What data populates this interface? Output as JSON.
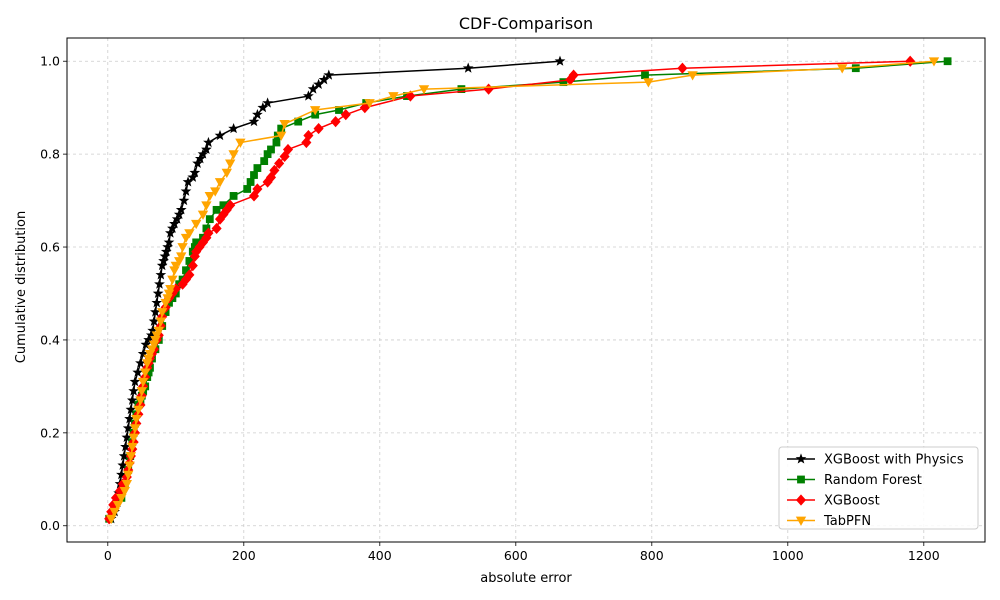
{
  "chart_data": {
    "type": "line",
    "title": "CDF-Comparison",
    "xlabel": "absolute error",
    "ylabel": "Cumulative distribution",
    "xlim": [
      -60,
      1290
    ],
    "ylim": [
      -0.035,
      1.05
    ],
    "xticks": [
      0,
      200,
      400,
      600,
      800,
      1000,
      1200
    ],
    "yticks": [
      0.0,
      0.2,
      0.4,
      0.6,
      0.8,
      1.0
    ],
    "xtick_labels": [
      "0",
      "200",
      "400",
      "600",
      "800",
      "1000",
      "1200"
    ],
    "ytick_labels": [
      "0.0",
      "0.2",
      "0.4",
      "0.6",
      "0.8",
      "1.0"
    ],
    "grid": true,
    "legend_position": "lower-right",
    "series": [
      {
        "name": "XGBoost with Physics",
        "color": "#000000",
        "marker": "star",
        "x": [
          5,
          10,
          14,
          16,
          18,
          20,
          22,
          24,
          26,
          28,
          30,
          32,
          34,
          36,
          38,
          40,
          44,
          48,
          52,
          56,
          60,
          64,
          66,
          68,
          70,
          72,
          74,
          76,
          78,
          80,
          82,
          84,
          86,
          88,
          90,
          92,
          95,
          98,
          102,
          105,
          108,
          112,
          115,
          118,
          125,
          128,
          132,
          136,
          140,
          145,
          148,
          165,
          185,
          215,
          220,
          228,
          235,
          295,
          302,
          310,
          318,
          325,
          530,
          665
        ],
        "y": [
          0.015,
          0.03,
          0.05,
          0.07,
          0.09,
          0.11,
          0.13,
          0.15,
          0.17,
          0.19,
          0.21,
          0.23,
          0.25,
          0.27,
          0.29,
          0.31,
          0.33,
          0.35,
          0.37,
          0.39,
          0.4,
          0.41,
          0.42,
          0.44,
          0.46,
          0.48,
          0.5,
          0.52,
          0.54,
          0.56,
          0.57,
          0.58,
          0.59,
          0.6,
          0.61,
          0.63,
          0.64,
          0.65,
          0.66,
          0.67,
          0.68,
          0.7,
          0.72,
          0.74,
          0.75,
          0.76,
          0.78,
          0.79,
          0.8,
          0.81,
          0.825,
          0.84,
          0.855,
          0.87,
          0.885,
          0.9,
          0.91,
          0.925,
          0.94,
          0.95,
          0.96,
          0.97,
          0.985,
          1.0
        ]
      },
      {
        "name": "Random Forest",
        "color": "#008000",
        "marker": "square",
        "x": [
          2,
          20,
          25,
          30,
          33,
          36,
          38,
          40,
          42,
          45,
          48,
          50,
          52,
          55,
          58,
          60,
          62,
          65,
          70,
          75,
          80,
          85,
          90,
          95,
          100,
          105,
          110,
          115,
          120,
          125,
          128,
          130,
          140,
          145,
          150,
          160,
          170,
          185,
          205,
          210,
          215,
          220,
          230,
          235,
          240,
          248,
          250,
          255,
          280,
          305,
          340,
          380,
          440,
          520,
          670,
          790,
          1100,
          1235
        ],
        "y": [
          0.015,
          0.06,
          0.09,
          0.12,
          0.15,
          0.18,
          0.2,
          0.22,
          0.24,
          0.26,
          0.27,
          0.28,
          0.29,
          0.3,
          0.32,
          0.33,
          0.34,
          0.36,
          0.38,
          0.4,
          0.43,
          0.46,
          0.48,
          0.49,
          0.5,
          0.52,
          0.53,
          0.55,
          0.57,
          0.59,
          0.6,
          0.61,
          0.62,
          0.64,
          0.66,
          0.68,
          0.69,
          0.71,
          0.725,
          0.74,
          0.755,
          0.77,
          0.785,
          0.8,
          0.81,
          0.825,
          0.84,
          0.855,
          0.87,
          0.885,
          0.895,
          0.91,
          0.925,
          0.94,
          0.955,
          0.97,
          0.985,
          1.0
        ]
      },
      {
        "name": "XGBoost",
        "color": "#ff0000",
        "marker": "diamond",
        "x": [
          2,
          5,
          8,
          12,
          18,
          22,
          28,
          30,
          32,
          34,
          36,
          38,
          40,
          42,
          45,
          48,
          50,
          52,
          55,
          58,
          60,
          62,
          65,
          68,
          72,
          75,
          78,
          80,
          85,
          90,
          95,
          100,
          110,
          115,
          120,
          125,
          128,
          130,
          135,
          140,
          145,
          148,
          160,
          165,
          170,
          175,
          180,
          215,
          220,
          235,
          240,
          245,
          252,
          260,
          265,
          292,
          295,
          310,
          335,
          350,
          378,
          445,
          560,
          680,
          685,
          845,
          1180
        ],
        "y": [
          0.015,
          0.03,
          0.045,
          0.06,
          0.075,
          0.09,
          0.105,
          0.12,
          0.135,
          0.15,
          0.165,
          0.18,
          0.2,
          0.22,
          0.24,
          0.26,
          0.28,
          0.3,
          0.32,
          0.34,
          0.35,
          0.36,
          0.37,
          0.38,
          0.4,
          0.41,
          0.43,
          0.45,
          0.47,
          0.49,
          0.5,
          0.51,
          0.52,
          0.53,
          0.54,
          0.56,
          0.58,
          0.59,
          0.6,
          0.61,
          0.62,
          0.63,
          0.64,
          0.66,
          0.67,
          0.68,
          0.69,
          0.71,
          0.725,
          0.74,
          0.75,
          0.765,
          0.78,
          0.795,
          0.81,
          0.825,
          0.84,
          0.855,
          0.87,
          0.885,
          0.9,
          0.925,
          0.94,
          0.96,
          0.97,
          0.985,
          1.0
        ]
      },
      {
        "name": "TabPFN",
        "color": "#ffa500",
        "marker": "triangle-down",
        "x": [
          5,
          10,
          15,
          20,
          25,
          28,
          30,
          32,
          34,
          36,
          38,
          40,
          42,
          45,
          48,
          50,
          52,
          55,
          58,
          60,
          62,
          65,
          68,
          70,
          72,
          75,
          78,
          80,
          85,
          88,
          90,
          92,
          95,
          98,
          100,
          105,
          108,
          110,
          115,
          120,
          130,
          140,
          145,
          150,
          158,
          165,
          175,
          180,
          185,
          195,
          255,
          260,
          305,
          385,
          420,
          465,
          795,
          860,
          1080,
          1215
        ],
        "y": [
          0.015,
          0.03,
          0.045,
          0.06,
          0.075,
          0.09,
          0.11,
          0.13,
          0.15,
          0.17,
          0.19,
          0.21,
          0.23,
          0.25,
          0.27,
          0.29,
          0.31,
          0.33,
          0.35,
          0.36,
          0.37,
          0.38,
          0.39,
          0.4,
          0.41,
          0.42,
          0.44,
          0.46,
          0.48,
          0.49,
          0.5,
          0.51,
          0.53,
          0.55,
          0.56,
          0.57,
          0.58,
          0.6,
          0.62,
          0.63,
          0.65,
          0.67,
          0.69,
          0.71,
          0.72,
          0.74,
          0.76,
          0.78,
          0.8,
          0.825,
          0.84,
          0.865,
          0.895,
          0.91,
          0.925,
          0.94,
          0.955,
          0.97,
          0.985,
          1.0
        ]
      }
    ]
  }
}
